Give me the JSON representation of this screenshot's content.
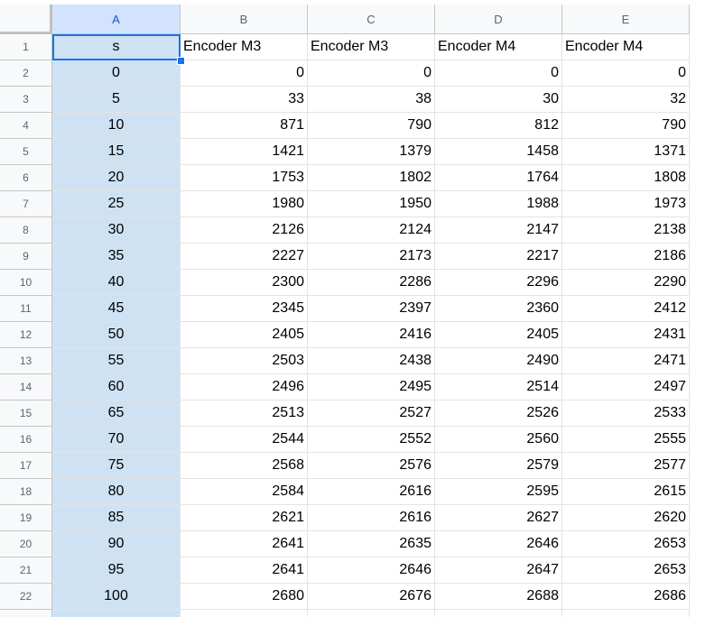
{
  "columns": [
    "A",
    "B",
    "C",
    "D",
    "E"
  ],
  "header_row": [
    "s",
    "Encoder M3",
    "Encoder M3",
    "Encoder M4",
    "Encoder M4"
  ],
  "rows": [
    [
      "0",
      "0",
      "0",
      "0",
      "0"
    ],
    [
      "5",
      "33",
      "38",
      "30",
      "32"
    ],
    [
      "10",
      "871",
      "790",
      "812",
      "790"
    ],
    [
      "15",
      "1421",
      "1379",
      "1458",
      "1371"
    ],
    [
      "20",
      "1753",
      "1802",
      "1764",
      "1808"
    ],
    [
      "25",
      "1980",
      "1950",
      "1988",
      "1973"
    ],
    [
      "30",
      "2126",
      "2124",
      "2147",
      "2138"
    ],
    [
      "35",
      "2227",
      "2173",
      "2217",
      "2186"
    ],
    [
      "40",
      "2300",
      "2286",
      "2296",
      "2290"
    ],
    [
      "45",
      "2345",
      "2397",
      "2360",
      "2412"
    ],
    [
      "50",
      "2405",
      "2416",
      "2405",
      "2431"
    ],
    [
      "55",
      "2503",
      "2438",
      "2490",
      "2471"
    ],
    [
      "60",
      "2496",
      "2495",
      "2514",
      "2497"
    ],
    [
      "65",
      "2513",
      "2527",
      "2526",
      "2533"
    ],
    [
      "70",
      "2544",
      "2552",
      "2560",
      "2555"
    ],
    [
      "75",
      "2568",
      "2576",
      "2579",
      "2577"
    ],
    [
      "80",
      "2584",
      "2616",
      "2595",
      "2615"
    ],
    [
      "85",
      "2621",
      "2616",
      "2627",
      "2620"
    ],
    [
      "90",
      "2641",
      "2635",
      "2646",
      "2653"
    ],
    [
      "95",
      "2641",
      "2646",
      "2647",
      "2653"
    ],
    [
      "100",
      "2680",
      "2676",
      "2688",
      "2686"
    ]
  ],
  "selected_column": "A",
  "active_cell": "A1",
  "colors": {
    "selection_fill": "#cfe2f3",
    "selection_border": "#1a73e8",
    "header_bg": "#f8f9fa",
    "grid_line": "#e2e3e3"
  }
}
